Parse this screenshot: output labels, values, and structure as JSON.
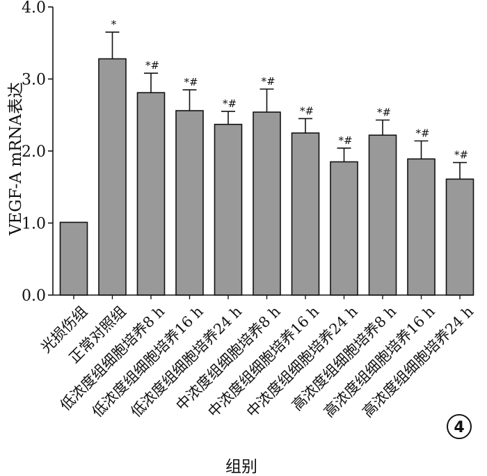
{
  "chart_data": {
    "type": "bar",
    "title": "",
    "xlabel": "组别",
    "ylabel": "VEGF-A mRNA表达",
    "ylim": [
      0,
      4.0
    ],
    "yticks": [
      "0.0",
      "1.0",
      "2.0",
      "3.0",
      "4.0"
    ],
    "grid": false,
    "bar_color": "#999999",
    "categories": [
      "光损伤组",
      "正常对照组",
      "低浓度组细胞培养8 h",
      "低浓度组细胞培养16 h",
      "低浓度组细胞培养24 h",
      "中浓度组细胞培养8 h",
      "中浓度组细胞培养16 h",
      "中浓度组细胞培养24 h",
      "高浓度组细胞培养8 h",
      "高浓度组细胞培养16 h",
      "高浓度组细胞培养24 h"
    ],
    "values": [
      1.01,
      3.28,
      2.81,
      2.56,
      2.37,
      2.54,
      2.25,
      1.85,
      2.22,
      1.89,
      1.61
    ],
    "errors": [
      0,
      0.37,
      0.27,
      0.29,
      0.18,
      0.32,
      0.2,
      0.19,
      0.21,
      0.25,
      0.23
    ],
    "significance": [
      "",
      "*",
      "*#",
      "*#",
      "*#",
      "*#",
      "*#",
      "*#",
      "*#",
      "*#",
      "*#"
    ]
  },
  "panel_label": "4"
}
